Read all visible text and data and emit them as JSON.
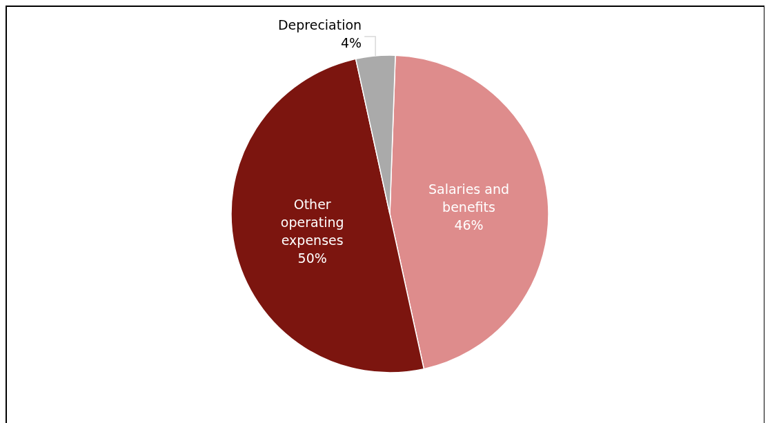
{
  "chart_data": {
    "type": "pie",
    "categories": [
      "Salaries and benefits",
      "Other operating expenses",
      "Depreciation"
    ],
    "values": [
      46,
      50,
      4
    ],
    "colors": [
      "#de8c8c",
      "#7c150f",
      "#aaaaaa"
    ],
    "value_labels": [
      "46%",
      "50%",
      "4%"
    ]
  }
}
